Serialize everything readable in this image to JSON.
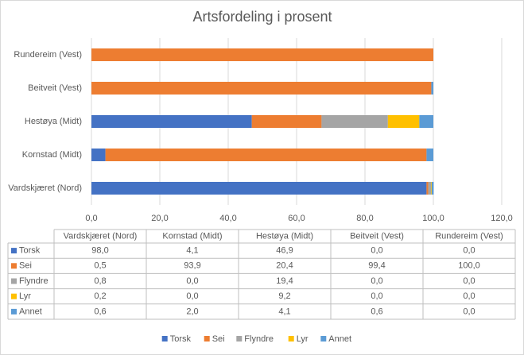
{
  "chart_data": {
    "type": "stacked-bar-horizontal",
    "title": "Artsfordeling i prosent",
    "categories": [
      "Vardskjæret (Nord)",
      "Kornstad (Midt)",
      "Hestøya (Midt)",
      "Beitveit (Vest)",
      "Rundereim (Vest)"
    ],
    "series": [
      {
        "name": "Torsk",
        "color": "#4472c4",
        "values": [
          98.0,
          4.1,
          46.9,
          0.0,
          0.0
        ],
        "value_labels": [
          "98,0",
          "4,1",
          "46,9",
          "0,0",
          "0,0"
        ]
      },
      {
        "name": "Sei",
        "color": "#ed7d31",
        "values": [
          0.5,
          93.9,
          20.4,
          99.4,
          100.0
        ],
        "value_labels": [
          "0,5",
          "93,9",
          "20,4",
          "99,4",
          "100,0"
        ]
      },
      {
        "name": "Flyndre",
        "color": "#a5a5a5",
        "values": [
          0.8,
          0.0,
          19.4,
          0.0,
          0.0
        ],
        "value_labels": [
          "0,8",
          "0,0",
          "19,4",
          "0,0",
          "0,0"
        ]
      },
      {
        "name": "Lyr",
        "color": "#ffc000",
        "values": [
          0.2,
          0.0,
          9.2,
          0.0,
          0.0
        ],
        "value_labels": [
          "0,2",
          "0,0",
          "9,2",
          "0,0",
          "0,0"
        ]
      },
      {
        "name": "Annet",
        "color": "#5b9bd5",
        "values": [
          0.6,
          2.0,
          4.1,
          0.6,
          0.0
        ],
        "value_labels": [
          "0,6",
          "2,0",
          "4,1",
          "0,6",
          "0,0"
        ]
      }
    ],
    "xlim": [
      0,
      120
    ],
    "xticks": [
      {
        "value": 0,
        "label": "0,0"
      },
      {
        "value": 20,
        "label": "20,0"
      },
      {
        "value": 40,
        "label": "40,0"
      },
      {
        "value": 60,
        "label": "60,0"
      },
      {
        "value": 80,
        "label": "80,0"
      },
      {
        "value": 100,
        "label": "100,0"
      },
      {
        "value": 120,
        "label": "120,0"
      }
    ],
    "grid": true,
    "legend": "bottom",
    "data_table": true
  }
}
